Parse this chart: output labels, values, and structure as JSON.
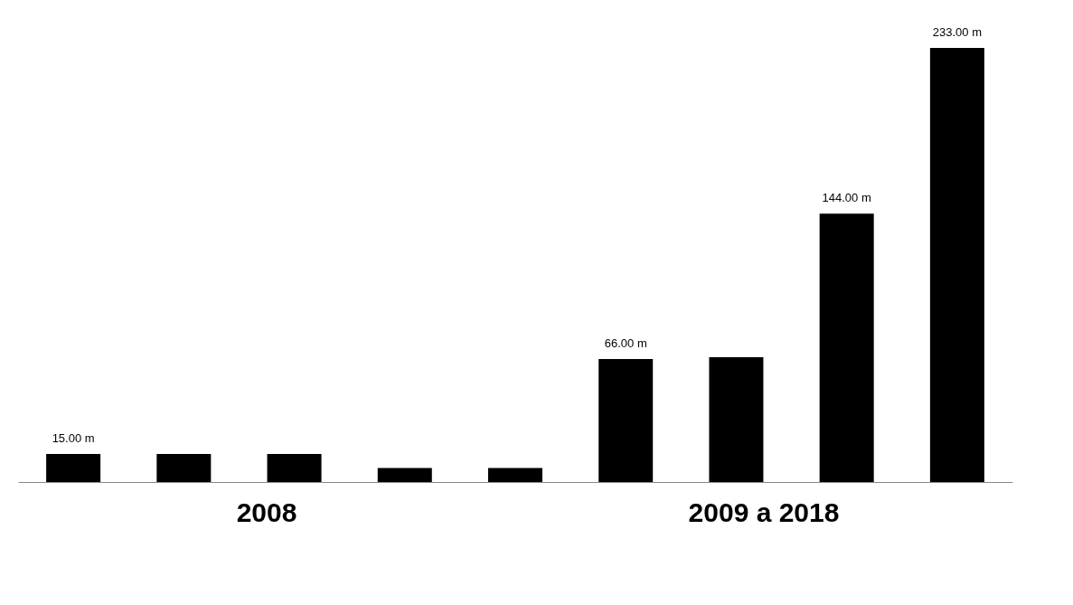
{
  "chart_data": {
    "type": "bar",
    "categories": [
      null,
      null,
      null,
      null,
      null,
      null,
      null,
      null,
      null
    ],
    "values": [
      15,
      15,
      15,
      7.5,
      7.5,
      66,
      67,
      144,
      233
    ],
    "color": "#000000",
    "value_labels": [
      "15.00 m",
      null,
      null,
      null,
      null,
      "66.00 m",
      null,
      "144.00 m",
      "233.00 m"
    ],
    "annotations": [
      "2008",
      "2009 a 2018"
    ],
    "grid": false
  }
}
